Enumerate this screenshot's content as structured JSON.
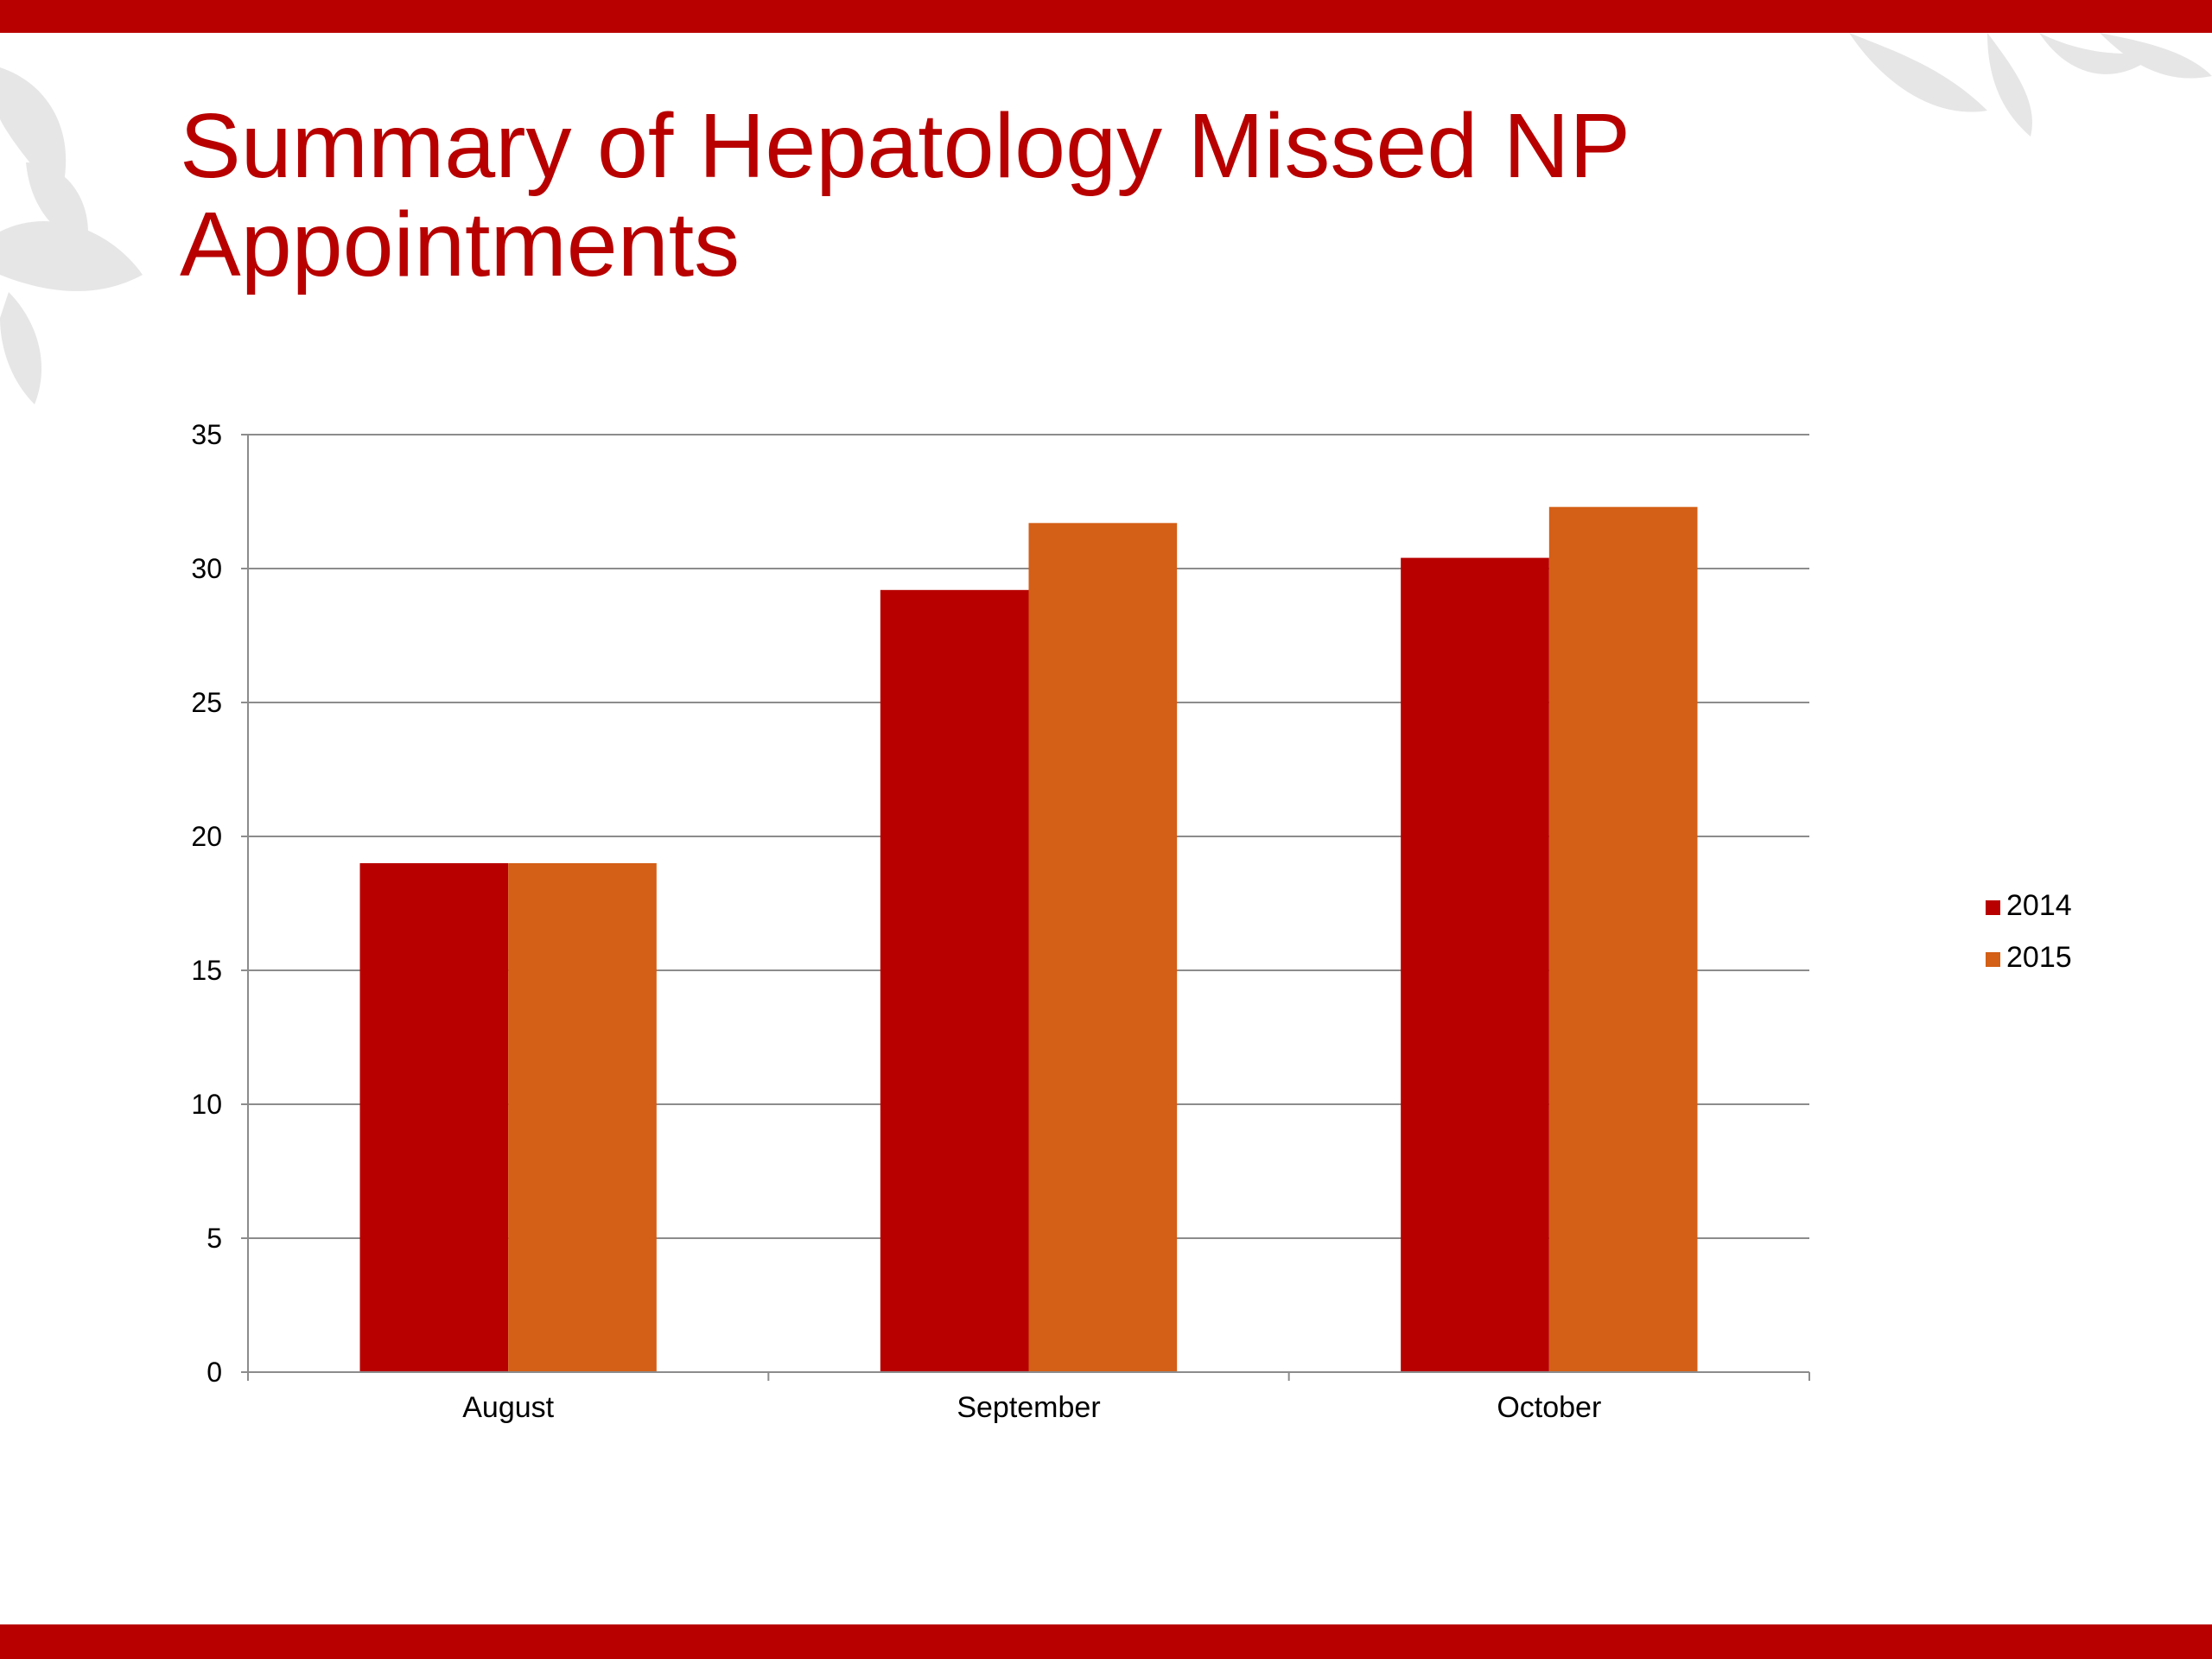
{
  "slide": {
    "title": "Summary of Hepatology Missed NP Appointments",
    "accent_color": "#b80000",
    "decoration": "leaf-pattern"
  },
  "chart_data": {
    "type": "bar",
    "categories": [
      "August",
      "September",
      "October"
    ],
    "series": [
      {
        "name": "2014",
        "values": [
          19,
          29.2,
          30.4
        ],
        "color": "#b80000"
      },
      {
        "name": "2015",
        "values": [
          19,
          31.7,
          32.3
        ],
        "color": "#d45f16"
      }
    ],
    "ylim": [
      0,
      35
    ],
    "yticks": [
      "0",
      "5",
      "10",
      "15",
      "20",
      "25",
      "30",
      "35"
    ],
    "grid": true,
    "legend": "right"
  }
}
